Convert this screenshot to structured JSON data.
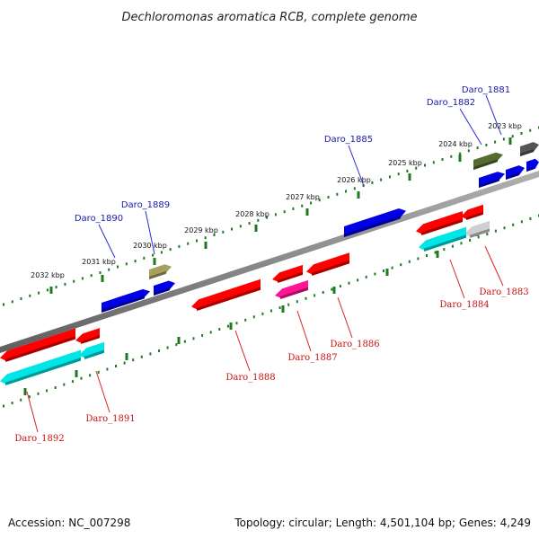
{
  "title": "Dechloromonas aromatica RCB, complete genome",
  "footer": {
    "accession": "Accession: NC_007298",
    "summary": "Topology: circular; Length: 4,501,104 bp; Genes: 4,249"
  },
  "colors": {
    "backbone": "#8c8c8c",
    "ticks": "#1e7a1e",
    "label_top": "#1a1aa8",
    "label_bottom": "#cc1111",
    "leader_top": "#2a2ad0",
    "leader_bottom": "#dd2222"
  },
  "scale_labels": [
    "2023 kbp",
    "2024 kbp",
    "2025 kbp",
    "2026 kbp",
    "2027 kbp",
    "2028 kbp",
    "2029 kbp",
    "2030 kbp",
    "2031 kbp",
    "2032 kbp"
  ],
  "genes_forward": [
    {
      "name": "Daro_1881",
      "color": "#556b2f"
    },
    {
      "name": "Daro_1882",
      "color": "#0000e6"
    },
    {
      "name": "Daro_1885",
      "color": "#0000e6"
    },
    {
      "name": "Daro_1889",
      "color": "#a8a060"
    },
    {
      "name": "Daro_1890",
      "color": "#0000e6"
    }
  ],
  "genes_reverse": [
    {
      "name": "Daro_1883",
      "color": "#e8e8e8"
    },
    {
      "name": "Daro_1884",
      "color": "#00e6e6"
    },
    {
      "name": "Daro_1886",
      "color": "#ff0000"
    },
    {
      "name": "Daro_1887",
      "color": "#ff1493"
    },
    {
      "name": "Daro_1888",
      "color": "#ff0000"
    },
    {
      "name": "Daro_1891",
      "color": "#00e6e6"
    },
    {
      "name": "Daro_1892",
      "color": "#00e6e6"
    }
  ]
}
